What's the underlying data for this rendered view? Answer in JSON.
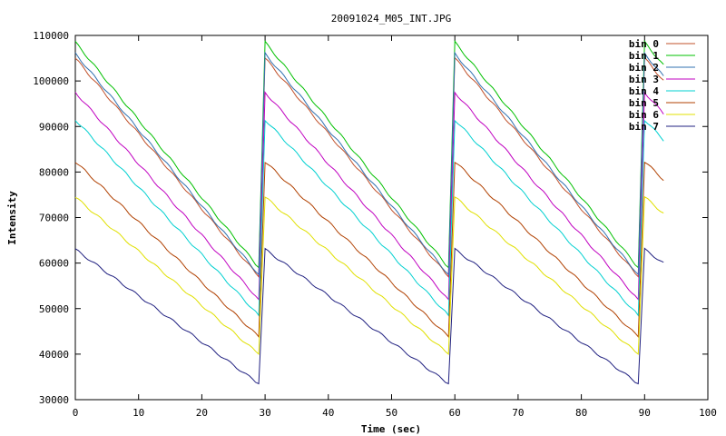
{
  "chart_data": {
    "type": "line",
    "title": "20091024_M05_INT.JPG",
    "xlabel": "Time (sec)",
    "ylabel": "Intensity",
    "xlim": [
      0,
      100
    ],
    "ylim": [
      30000,
      110000
    ],
    "xticks": [
      0,
      10,
      20,
      30,
      40,
      50,
      60,
      70,
      80,
      90,
      100
    ],
    "yticks": [
      30000,
      40000,
      50000,
      60000,
      70000,
      80000,
      90000,
      100000,
      110000
    ],
    "grid": false,
    "legend_position": "top-right",
    "x_range_data": [
      0,
      93
    ],
    "cycle_period_sec": 30,
    "series": [
      {
        "name": "bin 0",
        "color": "#c0502a",
        "peak": 105000,
        "trough": 57000
      },
      {
        "name": "bin 1",
        "color": "#00c000",
        "peak": 108500,
        "trough": 59000
      },
      {
        "name": "bin 2",
        "color": "#3070b0",
        "peak": 106000,
        "trough": 57500
      },
      {
        "name": "bin 3",
        "color": "#c000c0",
        "peak": 97500,
        "trough": 52000
      },
      {
        "name": "bin 4",
        "color": "#00d0d0",
        "peak": 91500,
        "trough": 48500
      },
      {
        "name": "bin 5",
        "color": "#b04000",
        "peak": 82300,
        "trough": 43800
      },
      {
        "name": "bin 6",
        "color": "#e0e000",
        "peak": 74500,
        "trough": 40000
      },
      {
        "name": "bin 7",
        "color": "#202080",
        "peak": 63000,
        "trough": 33500
      }
    ]
  }
}
